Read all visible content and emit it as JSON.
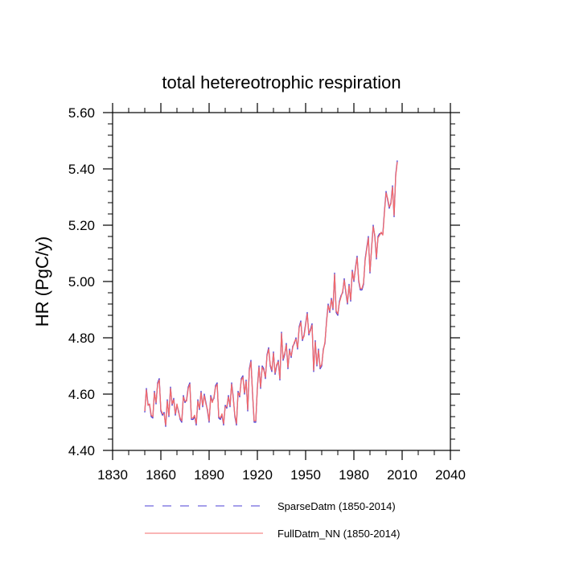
{
  "chart_data": {
    "type": "line",
    "title": "total hetereotrophic respiration",
    "ylabel": "HR  (PgC/y)",
    "xlabel": "",
    "xlim": [
      1830,
      2040
    ],
    "ylim": [
      4.4,
      5.6
    ],
    "x_ticks": [
      1830,
      1860,
      1890,
      1920,
      1950,
      1980,
      2010,
      2040
    ],
    "x_tick_labels": [
      "1830",
      "1860",
      "1890",
      "1920",
      "1950",
      "1980",
      "2010",
      "2040"
    ],
    "y_ticks": [
      4.4,
      4.6,
      4.8,
      5.0,
      5.2,
      5.4,
      5.6
    ],
    "y_tick_labels": [
      "4.40",
      "4.60",
      "4.80",
      "5.00",
      "5.20",
      "5.40",
      "5.60"
    ],
    "grid": false,
    "legend_position": "bottom",
    "x_start": 1850,
    "x_end": 2014,
    "series": [
      {
        "name": "SparseDatm (1850-2014)",
        "color": "#4b3fd6",
        "style": "dashed",
        "values": [
          4.535,
          4.62,
          4.565,
          4.56,
          4.52,
          4.515,
          4.61,
          4.565,
          4.64,
          4.655,
          4.54,
          4.525,
          4.535,
          4.485,
          4.58,
          4.52,
          4.625,
          4.56,
          4.585,
          4.525,
          4.56,
          4.54,
          4.51,
          4.5,
          4.595,
          4.57,
          4.58,
          4.625,
          4.64,
          4.51,
          4.51,
          4.52,
          4.49,
          4.58,
          4.545,
          4.61,
          4.555,
          4.6,
          4.57,
          4.54,
          4.5,
          4.595,
          4.575,
          4.585,
          4.63,
          4.64,
          4.515,
          4.51,
          4.525,
          4.49,
          4.56,
          4.55,
          4.595,
          4.555,
          4.64,
          4.59,
          4.52,
          4.49,
          4.61,
          4.59,
          4.655,
          4.665,
          4.6,
          4.65,
          4.54,
          4.69,
          4.72,
          4.6,
          4.5,
          4.5,
          4.625,
          4.7,
          4.62,
          4.7,
          4.69,
          4.655,
          4.74,
          4.765,
          4.7,
          4.68,
          4.75,
          4.67,
          4.7,
          4.72,
          4.65,
          4.82,
          4.72,
          4.74,
          4.78,
          4.69,
          4.76,
          4.73,
          4.77,
          4.78,
          4.8,
          4.76,
          4.84,
          4.86,
          4.79,
          4.81,
          4.85,
          4.89,
          4.81,
          4.83,
          4.85,
          4.68,
          4.79,
          4.7,
          4.76,
          4.69,
          4.7,
          4.76,
          4.78,
          4.86,
          4.92,
          4.89,
          4.94,
          4.9,
          5.03,
          4.89,
          4.88,
          4.93,
          4.95,
          4.96,
          5.01,
          4.96,
          4.92,
          4.99,
          4.93,
          5.04,
          5.0,
          5.05,
          5.09,
          5.0,
          4.97,
          4.97,
          4.99,
          5.08,
          5.12,
          5.16,
          5.03,
          5.12,
          5.2,
          5.16,
          5.08,
          5.16,
          5.17,
          5.17,
          5.17,
          5.25,
          5.32,
          5.29,
          5.26,
          5.28,
          5.34,
          5.23,
          5.38,
          5.43
        ]
      },
      {
        "name": "FullDatm_NN (1850-2014)",
        "color": "#f36b6b",
        "style": "solid",
        "values": [
          4.54,
          4.615,
          4.56,
          4.565,
          4.525,
          4.52,
          4.605,
          4.57,
          4.635,
          4.65,
          4.545,
          4.53,
          4.53,
          4.49,
          4.575,
          4.525,
          4.62,
          4.565,
          4.58,
          4.53,
          4.565,
          4.535,
          4.515,
          4.505,
          4.59,
          4.575,
          4.575,
          4.62,
          4.635,
          4.515,
          4.515,
          4.525,
          4.495,
          4.575,
          4.55,
          4.605,
          4.56,
          4.595,
          4.565,
          4.545,
          4.505,
          4.59,
          4.57,
          4.59,
          4.625,
          4.635,
          4.52,
          4.515,
          4.53,
          4.495,
          4.555,
          4.555,
          4.59,
          4.56,
          4.635,
          4.585,
          4.525,
          4.495,
          4.605,
          4.595,
          4.65,
          4.66,
          4.605,
          4.645,
          4.545,
          4.685,
          4.715,
          4.605,
          4.505,
          4.505,
          4.62,
          4.695,
          4.625,
          4.695,
          4.685,
          4.66,
          4.735,
          4.76,
          4.705,
          4.685,
          4.745,
          4.675,
          4.705,
          4.715,
          4.655,
          4.815,
          4.725,
          4.745,
          4.775,
          4.695,
          4.755,
          4.735,
          4.765,
          4.785,
          4.795,
          4.765,
          4.835,
          4.855,
          4.795,
          4.805,
          4.845,
          4.885,
          4.815,
          4.825,
          4.845,
          4.685,
          4.785,
          4.705,
          4.755,
          4.695,
          4.705,
          4.755,
          4.785,
          4.855,
          4.915,
          4.895,
          4.935,
          4.905,
          5.025,
          4.895,
          4.885,
          4.925,
          4.945,
          4.965,
          5.005,
          4.965,
          4.925,
          4.985,
          4.935,
          5.035,
          5.005,
          5.045,
          5.085,
          5.005,
          4.975,
          4.975,
          4.995,
          5.075,
          5.115,
          5.155,
          5.035,
          5.115,
          5.195,
          5.165,
          5.085,
          5.155,
          5.165,
          5.175,
          5.165,
          5.245,
          5.315,
          5.295,
          5.265,
          5.275,
          5.335,
          5.235,
          5.375,
          5.425
        ]
      }
    ]
  }
}
